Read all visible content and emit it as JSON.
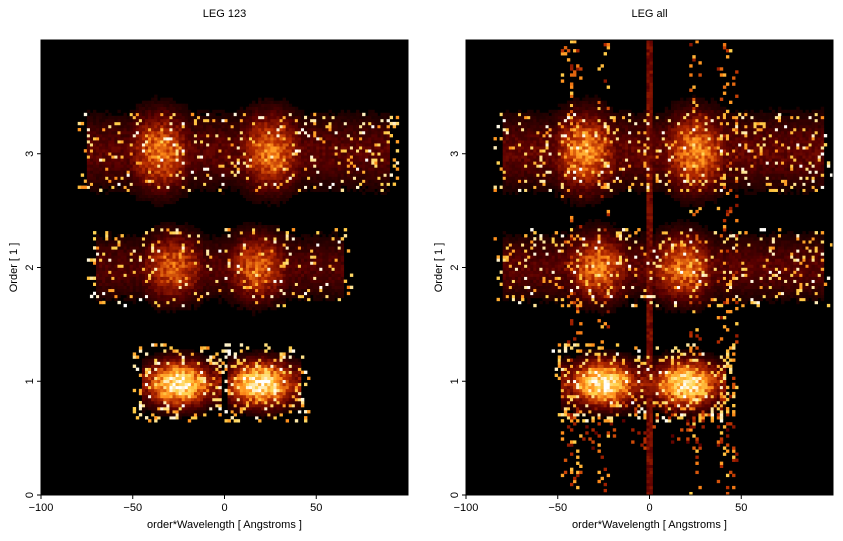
{
  "chart_data": [
    {
      "type": "heatmap",
      "title": "LEG 123",
      "xlabel": "order*Wavelength [ Angstroms ]",
      "ylabel": "Order [ 1 ]",
      "xlim": [
        -100,
        100
      ],
      "ylim": [
        0,
        4
      ],
      "xticks": [
        -100,
        -50,
        0,
        50
      ],
      "yticks": [
        0,
        1,
        2,
        3
      ],
      "colormap": [
        "#000000",
        "#5a0000",
        "#b52a00",
        "#ff8c1a",
        "#ffd24d",
        "#ffffff"
      ],
      "background": "#000000",
      "grid": false,
      "bands": [
        {
          "order": 1,
          "center": 0.98,
          "core_halfwidth": 0.08,
          "x_extent": [
            -45,
            42
          ],
          "peak_x": [
            -25,
            20
          ],
          "intensity": 1.0,
          "center_gap": true
        },
        {
          "order": 2,
          "center": 2.0,
          "core_halfwidth": 0.12,
          "x_extent": [
            -70,
            65
          ],
          "peak_x": [
            -28,
            18
          ],
          "intensity": 0.55
        },
        {
          "order": 3,
          "center": 3.02,
          "core_halfwidth": 0.14,
          "x_extent": [
            -75,
            90
          ],
          "peak_x": [
            -35,
            25
          ],
          "intensity": 0.6
        }
      ]
    },
    {
      "type": "heatmap",
      "title": "LEG all",
      "xlabel": "order*Wavelength [ Angstroms ]",
      "ylabel": "Order [ 1 ]",
      "xlim": [
        -100,
        100
      ],
      "ylim": [
        0,
        4
      ],
      "xticks": [
        -100,
        -50,
        0,
        50
      ],
      "yticks": [
        0,
        1,
        2,
        3
      ],
      "colormap": [
        "#000000",
        "#5a0000",
        "#b52a00",
        "#ff8c1a",
        "#ffd24d",
        "#ffffff"
      ],
      "background": "#000000",
      "grid": false,
      "bands": [
        {
          "order": 1,
          "center": 0.98,
          "core_halfwidth": 0.08,
          "x_extent": [
            -48,
            42
          ],
          "peak_x": [
            -25,
            20
          ],
          "intensity": 1.0,
          "center_gap": false
        },
        {
          "order": 2,
          "center": 2.0,
          "core_halfwidth": 0.12,
          "x_extent": [
            -80,
            95
          ],
          "peak_x": [
            -28,
            18
          ],
          "intensity": 0.6
        },
        {
          "order": 3,
          "center": 3.02,
          "core_halfwidth": 0.14,
          "x_extent": [
            -80,
            95
          ],
          "peak_x": [
            -35,
            25
          ],
          "intensity": 0.65
        }
      ],
      "zeroth_order_line": {
        "x": 0,
        "y_range": [
          0,
          4
        ]
      },
      "vertical_streaks_x": [
        -45,
        -40,
        -25,
        25,
        40,
        45
      ]
    }
  ]
}
